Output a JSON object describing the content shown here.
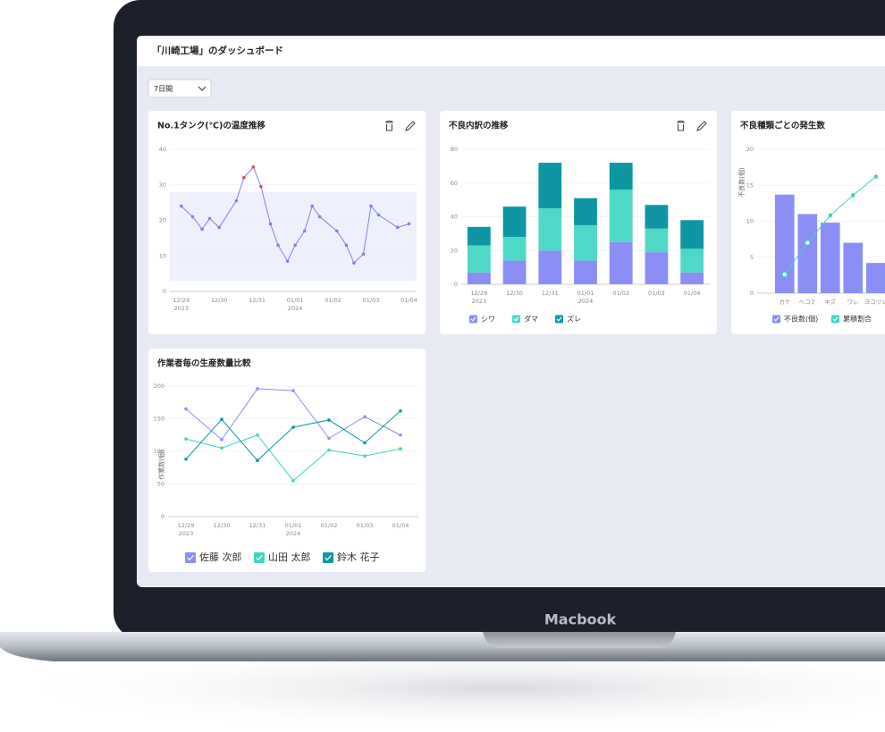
{
  "header": {
    "title": "「川崎工場」のダッシュボード"
  },
  "filter": {
    "label": "7日間"
  },
  "device": {
    "label": "Macbook"
  },
  "chart_data": [
    {
      "type": "line",
      "title": "No.1タンク(℃)の温度推移",
      "x": [
        0,
        0.3,
        0.55,
        0.75,
        1.0,
        1.45,
        1.65,
        1.9,
        2.1,
        2.35,
        2.55,
        2.8,
        3.0,
        3.25,
        3.45,
        3.65,
        4.1,
        4.35,
        4.55,
        4.8,
        5.0,
        5.2,
        5.7,
        6.0
      ],
      "values": [
        24,
        21,
        17.5,
        20.5,
        18,
        25.5,
        32,
        35,
        29.5,
        19,
        13,
        8.5,
        13,
        17,
        24,
        21,
        17,
        13,
        8,
        10.5,
        24,
        21.5,
        18,
        19
      ],
      "xlim": [
        -0.3,
        6.2
      ],
      "xticks": [
        {
          "value": 0,
          "label": "12/29"
        },
        {
          "value": 1,
          "label": "12/30"
        },
        {
          "value": 2,
          "label": "12/31"
        },
        {
          "value": 3,
          "label": "01/01"
        },
        {
          "value": 4,
          "label": "01/02"
        },
        {
          "value": 5,
          "label": "01/03"
        },
        {
          "value": 6,
          "label": "01/04"
        }
      ],
      "year_labels": [
        {
          "value": 0,
          "label": "2023"
        },
        {
          "value": 3,
          "label": "2024"
        }
      ],
      "ylim": [
        0,
        40
      ],
      "yticks": [
        0,
        10,
        20,
        30,
        40
      ],
      "grid": true,
      "color": "#7b83eb",
      "band": [
        3,
        28
      ],
      "band_color": "#eef0fc",
      "highlight_color": "#e8473f"
    },
    {
      "type": "bar",
      "stacked": true,
      "title": "不良内訳の推移",
      "categories": [
        "12/29",
        "12/30",
        "12/31",
        "01/01",
        "01/02",
        "01/03",
        "01/04"
      ],
      "year_labels": [
        {
          "value": 0,
          "label": "2023"
        },
        {
          "value": 3,
          "label": "2024"
        }
      ],
      "series": [
        {
          "name": "シワ",
          "color": "#8b8ff5",
          "values": [
            7,
            14,
            20,
            14,
            25,
            19,
            7
          ]
        },
        {
          "name": "ダマ",
          "color": "#4fd8c8",
          "values": [
            16,
            14,
            25,
            21,
            31,
            14,
            14
          ]
        },
        {
          "name": "ズレ",
          "color": "#0e97a3",
          "values": [
            11,
            18,
            27,
            16,
            16,
            14,
            17
          ]
        }
      ],
      "ylim": [
        0,
        80
      ],
      "yticks": [
        0,
        20,
        40,
        60,
        80
      ],
      "grid": true
    },
    {
      "type": "bar",
      "title": "不良種類ごとの発生数",
      "ylabel": "不良数(個)",
      "categories": [
        "カケ",
        "ヘコミ",
        "キズ",
        "ワレ",
        "ヨコヅレ"
      ],
      "series": [
        {
          "name": "不良数(個)",
          "color": "#8b8ff5",
          "values": [
            13.7,
            11,
            9.8,
            7,
            4.2
          ]
        },
        {
          "name": "累積割合",
          "color": "#3dd6c0",
          "type": "line",
          "axis": "y2",
          "values": [
            13,
            35,
            54,
            68,
            81
          ]
        }
      ],
      "ylim": [
        0,
        20
      ],
      "yticks": [
        0,
        5,
        10,
        15,
        20
      ],
      "y2lim": [
        0,
        100
      ],
      "grid": true
    },
    {
      "type": "line",
      "title": "作業者毎の生産数量比較",
      "ylabel": "作業数(個)",
      "categories": [
        "12/29",
        "12/30",
        "12/31",
        "01/01",
        "01/02",
        "01/03",
        "01/04"
      ],
      "year_labels": [
        {
          "value": 0,
          "label": "2023"
        },
        {
          "value": 3,
          "label": "2024"
        }
      ],
      "series": [
        {
          "name": "佐藤 次郎",
          "color": "#8b8ff5",
          "values": [
            165,
            118,
            196,
            193,
            120,
            153,
            125
          ]
        },
        {
          "name": "山田 太郎",
          "color": "#3dd6c0",
          "values": [
            119,
            105,
            125,
            55,
            102,
            93,
            104
          ]
        },
        {
          "name": "鈴木 花子",
          "color": "#0e97a3",
          "values": [
            88,
            149,
            86,
            137,
            148,
            113,
            162
          ]
        }
      ],
      "ylim": [
        0,
        200
      ],
      "yticks": [
        0,
        50,
        100,
        150,
        200
      ],
      "grid": true
    }
  ]
}
